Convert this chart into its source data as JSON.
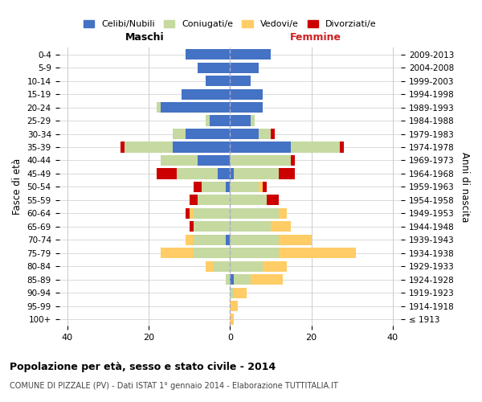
{
  "age_groups": [
    "100+",
    "95-99",
    "90-94",
    "85-89",
    "80-84",
    "75-79",
    "70-74",
    "65-69",
    "60-64",
    "55-59",
    "50-54",
    "45-49",
    "40-44",
    "35-39",
    "30-34",
    "25-29",
    "20-24",
    "15-19",
    "10-14",
    "5-9",
    "0-4"
  ],
  "birth_years": [
    "≤ 1913",
    "1914-1918",
    "1919-1923",
    "1924-1928",
    "1929-1933",
    "1934-1938",
    "1939-1943",
    "1944-1948",
    "1949-1953",
    "1954-1958",
    "1959-1963",
    "1964-1968",
    "1969-1973",
    "1974-1978",
    "1979-1983",
    "1984-1988",
    "1989-1993",
    "1994-1998",
    "1999-2003",
    "2004-2008",
    "2009-2013"
  ],
  "maschi": {
    "celibi": [
      0,
      0,
      0,
      0,
      0,
      0,
      1,
      0,
      0,
      0,
      1,
      3,
      8,
      14,
      11,
      5,
      17,
      12,
      6,
      8,
      11
    ],
    "coniugati": [
      0,
      0,
      0,
      1,
      4,
      9,
      8,
      9,
      9,
      8,
      6,
      10,
      9,
      12,
      3,
      1,
      1,
      0,
      0,
      0,
      0
    ],
    "vedovi": [
      0,
      0,
      0,
      0,
      2,
      8,
      2,
      0,
      1,
      0,
      0,
      0,
      0,
      0,
      0,
      0,
      0,
      0,
      0,
      0,
      0
    ],
    "divorziati": [
      0,
      0,
      0,
      0,
      0,
      0,
      0,
      1,
      1,
      2,
      2,
      5,
      0,
      1,
      0,
      0,
      0,
      0,
      0,
      0,
      0
    ]
  },
  "femmine": {
    "nubili": [
      0,
      0,
      0,
      1,
      0,
      0,
      0,
      0,
      0,
      0,
      0,
      1,
      0,
      15,
      7,
      5,
      8,
      8,
      5,
      7,
      10
    ],
    "coniugate": [
      0,
      0,
      1,
      4,
      8,
      12,
      12,
      10,
      12,
      9,
      7,
      11,
      15,
      12,
      3,
      1,
      0,
      0,
      0,
      0,
      0
    ],
    "vedove": [
      1,
      2,
      3,
      8,
      6,
      19,
      8,
      5,
      2,
      0,
      1,
      0,
      0,
      0,
      0,
      0,
      0,
      0,
      0,
      0,
      0
    ],
    "divorziate": [
      0,
      0,
      0,
      0,
      0,
      0,
      0,
      0,
      0,
      3,
      1,
      4,
      1,
      1,
      1,
      0,
      0,
      0,
      0,
      0,
      0
    ]
  },
  "colors": {
    "celibi_nubili": "#4472C4",
    "coniugati": "#C5D9A0",
    "vedovi": "#FFCC66",
    "divorziati": "#CC0000"
  },
  "title": "Popolazione per età, sesso e stato civile - 2014",
  "subtitle": "COMUNE DI PIZZALE (PV) - Dati ISTAT 1° gennaio 2014 - Elaborazione TUTTITALIA.IT",
  "xlabel_left": "Maschi",
  "xlabel_right": "Femmine",
  "ylabel_left": "Fasce di età",
  "ylabel_right": "Anni di nascita",
  "xlim": 42,
  "background_color": "#ffffff",
  "grid_color": "#cccccc"
}
